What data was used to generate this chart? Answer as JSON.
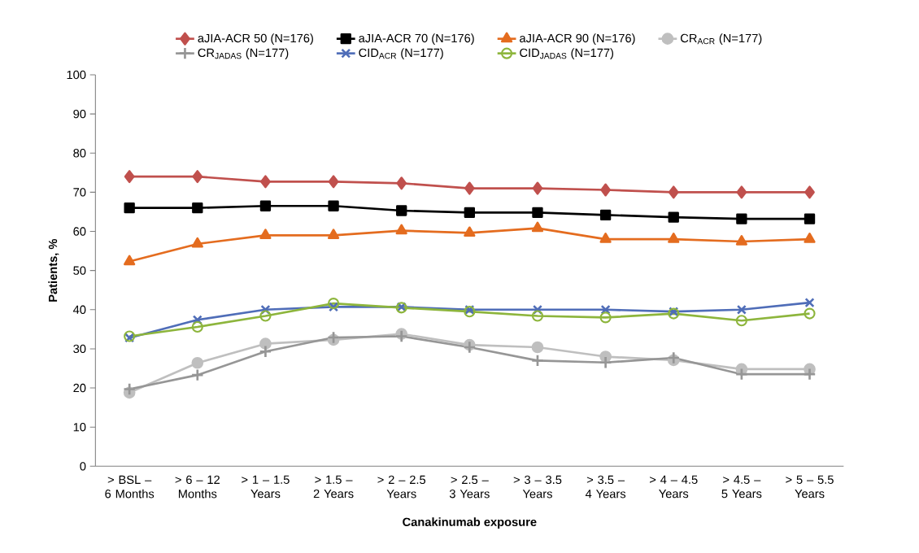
{
  "chart_data": {
    "type": "line",
    "xlabel": "Canakinumab exposure",
    "ylabel": "Patients, %",
    "categories": [
      "> BSL – 6 Months",
      "> 6 – 12 Months",
      "> 1 – 1.5 Years",
      "> 1.5 – 2 Years",
      "> 2 – 2.5 Years",
      "> 2.5 – 3 Years",
      "> 3 – 3.5 Years",
      "> 3.5 – 4 Years",
      "> 4 – 4.5 Years",
      "> 4.5 – 5 Years",
      "> 5 – 5.5 Years"
    ],
    "series": [
      {
        "name": "aJIA-ACR 50 (N=176)",
        "color": "#c0504d",
        "marker": "diamond",
        "values": [
          74,
          74,
          72.7,
          72.7,
          72.3,
          71,
          71,
          70.6,
          70,
          70,
          70
        ]
      },
      {
        "name": "aJIA-ACR 70 (N=176)",
        "color": "#000000",
        "marker": "square",
        "values": [
          66,
          66,
          66.5,
          66.5,
          65.3,
          64.8,
          64.8,
          64.2,
          63.6,
          63.2,
          63.2
        ]
      },
      {
        "name": "aJIA-ACR 90 (N=176)",
        "color": "#e46c1f",
        "marker": "triangle",
        "values": [
          52.3,
          56.8,
          59,
          59,
          60.2,
          59.6,
          60.8,
          58,
          58,
          57.4,
          58
        ]
      },
      {
        "name": "CR$_{ACR}$ (N=177)",
        "color": "#bfbfbf",
        "marker": "circle",
        "values": [
          18.8,
          26.4,
          31.3,
          32.3,
          33.8,
          31,
          30.4,
          28,
          27.1,
          24.8,
          24.8
        ]
      },
      {
        "name": "CR$_{JADAS}$ (N=177)",
        "color": "#969696",
        "marker": "plus",
        "values": [
          19.7,
          23.3,
          29.3,
          32.9,
          33.2,
          30.4,
          27,
          26.5,
          27.7,
          23.5,
          23.5
        ]
      },
      {
        "name": "CID$_{ACR}$ (N=177)",
        "color": "#4f6db8",
        "marker": "cross",
        "values": [
          32.8,
          37.4,
          40,
          40.7,
          40.7,
          40,
          40,
          40,
          39.5,
          40,
          41.8
        ]
      },
      {
        "name": "CID$_{JADAS}$ (N=177)",
        "color": "#8db53c",
        "marker": "circle-open",
        "values": [
          33.2,
          35.6,
          38.4,
          41.6,
          40.5,
          39.5,
          38.4,
          38,
          39,
          37.2,
          39
        ]
      }
    ],
    "ylim": [
      0,
      100
    ],
    "yticks": [
      0,
      10,
      20,
      30,
      40,
      50,
      60,
      70,
      80,
      90,
      100
    ],
    "grid": false,
    "legend": "top",
    "line_style": "solid"
  }
}
